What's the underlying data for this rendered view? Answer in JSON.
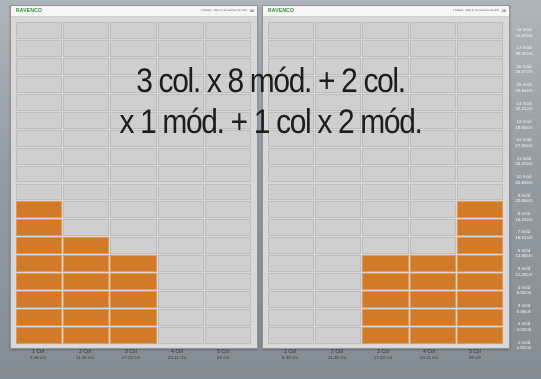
{
  "pages": [
    {
      "logo": "RAVENCO",
      "header_info": "1 Sábado · Maio 27 de setembro de 2010",
      "page_number": "36",
      "highlight_heights": [
        8,
        6,
        5,
        0,
        0
      ]
    },
    {
      "logo": "RAVENCO",
      "header_info": "1 Sábado · Maio 27 de setembro de 2010",
      "page_number": "35",
      "highlight_heights": [
        0,
        0,
        5,
        5,
        8
      ]
    }
  ],
  "grid": {
    "columns": 5,
    "rows": 18
  },
  "caption": {
    "line1": "3 col. x 8 mód. + 2 col.",
    "line2": "x 1 mód. + 1 col x 2 mód."
  },
  "column_labels": [
    {
      "name": "1 Col",
      "measure": "5.48 cm"
    },
    {
      "name": "2 Col",
      "measure": "11.36 cm"
    },
    {
      "name": "3 Col",
      "measure": "17.23 cm"
    },
    {
      "name": "4 Col",
      "measure": "23.11 cm"
    },
    {
      "name": "5 Col",
      "measure": "29 cm"
    }
  ],
  "module_labels": [
    {
      "name": "18 mód",
      "measure": "41.57cm"
    },
    {
      "name": "17 mód",
      "measure": "39.20cm"
    },
    {
      "name": "16 mód",
      "measure": "36.87cm"
    },
    {
      "name": "15 mód",
      "measure": "34.54cm"
    },
    {
      "name": "14 mód",
      "measure": "32.21cm"
    },
    {
      "name": "13 mód",
      "measure": "29.88cm"
    },
    {
      "name": "12 mód",
      "measure": "27.55cm"
    },
    {
      "name": "11 mód",
      "measure": "25.22cm"
    },
    {
      "name": "10 mód",
      "measure": "22.89cm"
    },
    {
      "name": "9 mód",
      "measure": "20.56cm"
    },
    {
      "name": "8 mód",
      "measure": "18.24cm"
    },
    {
      "name": "7 mód",
      "measure": "15.91cm"
    },
    {
      "name": "6 mód",
      "measure": "13.58cm"
    },
    {
      "name": "5 mód",
      "measure": "11.25cm"
    },
    {
      "name": "4 mód",
      "measure": "8.92cm"
    },
    {
      "name": "3 mód",
      "measure": "6.59cm"
    },
    {
      "name": "2 mód",
      "measure": "4.26cm"
    },
    {
      "name": "1 mód",
      "measure": "1.93cm"
    }
  ],
  "colors": {
    "highlight": "#d07a2a",
    "cell": "#cfcfcf",
    "page": "#d8d8d8"
  }
}
